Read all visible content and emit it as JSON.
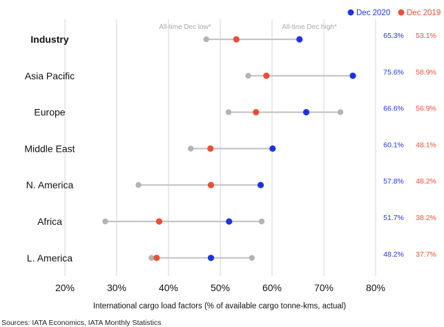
{
  "chart_data": {
    "type": "dot-range",
    "title": "",
    "xlabel": "International cargo load factors (% of available cargo tonne-kms, actual)",
    "xlim": [
      20,
      80
    ],
    "x_ticks": [
      "20%",
      "30%",
      "40%",
      "50%",
      "60%",
      "70%",
      "80%"
    ],
    "grid": "vertical",
    "legend_position": "top-right",
    "legend": [
      {
        "name": "Dec 2020",
        "color": "#1e32e6"
      },
      {
        "name": "Dec 2019",
        "color": "#ee4c33"
      }
    ],
    "annotations": [
      "All-time Dec low*",
      "All-time Dec high*"
    ],
    "colors": {
      "range": "#c4c4c4",
      "dec2020": "#1e32e6",
      "dec2019": "#ee4c33",
      "grid": "#d6d6d6",
      "alltime": "#b3b3b3"
    },
    "categories": [
      "Industry",
      "Asia Pacific",
      "Europe",
      "Middle East",
      "N. America",
      "Africa",
      "L. America"
    ],
    "rows": [
      {
        "category": "Industry",
        "low": 47.3,
        "high": 65.3,
        "dec2020": 65.3,
        "dec2019": 53.1,
        "dec2020_label": "65.3%",
        "dec2019_label": "53.1%"
      },
      {
        "category": "Asia Pacific",
        "low": 55.4,
        "high": 75.6,
        "dec2020": 75.6,
        "dec2019": 58.9,
        "dec2020_label": "75.6%",
        "dec2019_label": "58.9%"
      },
      {
        "category": "Europe",
        "low": 51.6,
        "high": 73.2,
        "dec2020": 66.6,
        "dec2019": 56.9,
        "dec2020_label": "66.6%",
        "dec2019_label": "56.9%"
      },
      {
        "category": "Middle East",
        "low": 44.3,
        "high": 60.1,
        "dec2020": 60.1,
        "dec2019": 48.1,
        "dec2020_label": "60.1%",
        "dec2019_label": "48.1%"
      },
      {
        "category": "N. America",
        "low": 34.2,
        "high": 57.8,
        "dec2020": 57.8,
        "dec2019": 48.2,
        "dec2020_label": "57.8%",
        "dec2019_label": "48.2%"
      },
      {
        "category": "Africa",
        "low": 27.8,
        "high": 58.0,
        "dec2020": 51.7,
        "dec2019": 38.2,
        "dec2020_label": "51.7%",
        "dec2019_label": "38.2%"
      },
      {
        "category": "L. America",
        "low": 36.7,
        "high": 56.1,
        "dec2020": 48.2,
        "dec2019": 37.7,
        "dec2020_label": "48.2%",
        "dec2019_label": "37.7%"
      }
    ],
    "source": "Sources: IATA Economics, IATA Monthly Statistics"
  }
}
